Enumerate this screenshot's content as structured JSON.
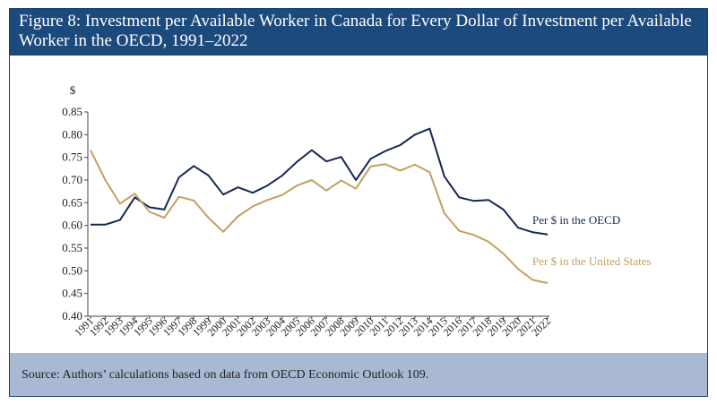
{
  "figure": {
    "title": "Figure 8: Investment per Available Worker in Canada for Every Dollar of Investment per Available Worker in the OECD, 1991–2022",
    "source": "Source: Authors’ calculations based on data from OECD Economic Outlook 109."
  },
  "chart_data": {
    "type": "line",
    "ylabel": "$",
    "ylim": [
      0.4,
      0.85
    ],
    "yticks": [
      "0.40",
      "0.45",
      "0.50",
      "0.55",
      "0.60",
      "0.65",
      "0.70",
      "0.75",
      "0.80",
      "0.85"
    ],
    "x": [
      "1991",
      "1992",
      "1993",
      "1994",
      "1995",
      "1996",
      "1997",
      "1998",
      "1999",
      "2000",
      "2001",
      "2002",
      "2003",
      "2004",
      "2005",
      "2006",
      "2007",
      "2008",
      "2009",
      "2010",
      "2011",
      "2012",
      "2013",
      "2014",
      "2015",
      "2016",
      "2017",
      "2018",
      "2019",
      "2020",
      "2021",
      "2022"
    ],
    "series": [
      {
        "name": "Per $ in the OECD",
        "color": "#16284f",
        "values": [
          0.602,
          0.602,
          0.612,
          0.662,
          0.64,
          0.635,
          0.706,
          0.731,
          0.71,
          0.668,
          0.684,
          0.672,
          0.688,
          0.71,
          0.74,
          0.766,
          0.741,
          0.751,
          0.7,
          0.747,
          0.764,
          0.777,
          0.8,
          0.813,
          0.708,
          0.662,
          0.654,
          0.656,
          0.635,
          0.595,
          0.585,
          0.58
        ]
      },
      {
        "name": "Per $ in the United States",
        "color": "#c2a060",
        "values": [
          0.766,
          0.7,
          0.648,
          0.67,
          0.63,
          0.617,
          0.663,
          0.655,
          0.617,
          0.586,
          0.62,
          0.642,
          0.656,
          0.667,
          0.688,
          0.7,
          0.677,
          0.699,
          0.681,
          0.73,
          0.735,
          0.721,
          0.734,
          0.717,
          0.627,
          0.588,
          0.579,
          0.564,
          0.538,
          0.504,
          0.48,
          0.473
        ]
      }
    ],
    "grid": false,
    "legend": "inline labels at right"
  }
}
